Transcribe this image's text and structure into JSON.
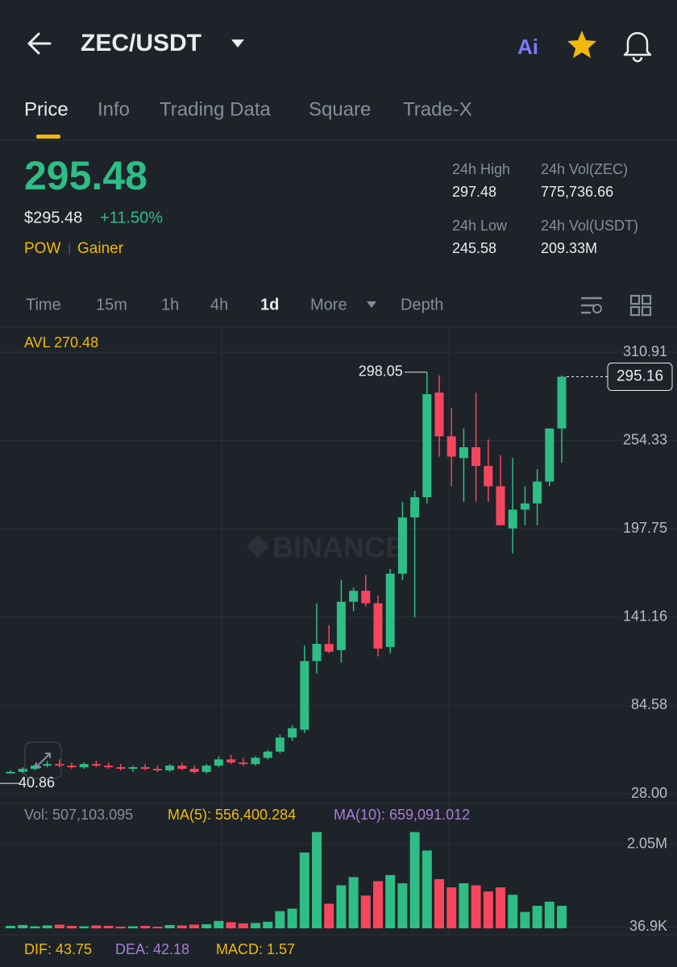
{
  "header": {
    "title": "ZEC/USDT",
    "ai": "Ai"
  },
  "tabs": [
    "Price",
    "Info",
    "Trading Data",
    "Square",
    "Trade-X"
  ],
  "price": {
    "last": "295.48",
    "usd": "$295.48",
    "change": "+11.50%",
    "tags": [
      "POW",
      "Gainer"
    ]
  },
  "stats": [
    {
      "label": "24h High",
      "value": "297.48"
    },
    {
      "label": "24h Vol(ZEC)",
      "value": "775,736.66"
    },
    {
      "label": "24h Low",
      "value": "245.58"
    },
    {
      "label": "24h Vol(USDT)",
      "value": "209.33M"
    }
  ],
  "intervals": [
    "Time",
    "15m",
    "1h",
    "4h",
    "1d",
    "More",
    "Depth"
  ],
  "chart_data": {
    "type": "candlestick",
    "avl": "AVL 270.48",
    "watermark": "BINANCE",
    "ylim": [
      28.0,
      310.91
    ],
    "yticks": [
      {
        "value": 310.91,
        "label": "310.91"
      },
      {
        "value": 254.33,
        "label": "254.33"
      },
      {
        "value": 197.75,
        "label": "197.75"
      },
      {
        "value": 141.16,
        "label": "141.16"
      },
      {
        "value": 84.58,
        "label": "84.58"
      },
      {
        "value": 28.0,
        "label": "28.00"
      }
    ],
    "up_color": "#2ebd85",
    "down_color": "#f6465d",
    "open": [
      41,
      42,
      44,
      46,
      47,
      46,
      45,
      47,
      46,
      45,
      44,
      45,
      44,
      43,
      46,
      44,
      42,
      46,
      50,
      48,
      47,
      51,
      55,
      64,
      69,
      113,
      124,
      120,
      151,
      158,
      150,
      122,
      169,
      205,
      218,
      285,
      257,
      243,
      250,
      238,
      225,
      198,
      210,
      214,
      228,
      262
    ],
    "high": [
      43,
      45,
      47,
      49,
      50,
      48,
      48,
      49,
      48,
      47,
      46,
      47,
      46,
      47,
      48,
      46,
      47,
      52,
      53,
      51,
      52,
      56,
      66,
      72,
      123,
      150,
      136,
      165,
      160,
      168,
      155,
      172,
      215,
      222,
      298.05,
      296,
      275,
      262,
      285,
      255,
      245,
      243,
      225,
      236,
      262,
      296
    ],
    "low": [
      40.86,
      41,
      43,
      45,
      45,
      44,
      44,
      45,
      44,
      43,
      42,
      43,
      42,
      42,
      43,
      41,
      41,
      45,
      47,
      46,
      46,
      50,
      54,
      62,
      67,
      105,
      118,
      112,
      145,
      148,
      116,
      118,
      165,
      141,
      214,
      244,
      225,
      215,
      215,
      215,
      200,
      182,
      200,
      200,
      225,
      240
    ],
    "close": [
      42,
      44,
      46,
      47,
      46,
      45,
      47,
      46,
      45,
      44,
      45,
      44,
      43,
      46,
      44,
      42,
      46,
      50,
      48,
      47,
      51,
      55,
      64,
      70,
      113,
      124,
      119,
      151,
      158,
      150,
      121,
      169,
      205,
      218,
      284,
      257,
      244,
      250,
      238,
      225,
      200,
      210,
      214,
      228,
      262,
      295.16
    ],
    "volume": {
      "header": [
        "Vol: 507,103.095",
        "MA(5): 556,400.284",
        "MA(10): 659,091.012"
      ],
      "ylim": [
        0,
        2400000
      ],
      "yticks": [
        {
          "value": 2050000,
          "label": "2.05M"
        },
        {
          "value": 36900,
          "label": "36.9K"
        }
      ],
      "values": [
        60000,
        80000,
        50000,
        70000,
        90000,
        60000,
        50000,
        70000,
        60000,
        40000,
        50000,
        60000,
        40000,
        80000,
        70000,
        90000,
        100000,
        180000,
        150000,
        120000,
        130000,
        160000,
        420000,
        480000,
        1850000,
        2350000,
        600000,
        1050000,
        1250000,
        800000,
        1150000,
        1300000,
        1100000,
        2350000,
        1900000,
        1200000,
        1000000,
        1100000,
        1050000,
        900000,
        1000000,
        820000,
        400000,
        550000,
        650000,
        550000
      ]
    },
    "macd": [
      "DIF: 43.75",
      "DEA: 42.18",
      "MACD: 1.57"
    ]
  }
}
